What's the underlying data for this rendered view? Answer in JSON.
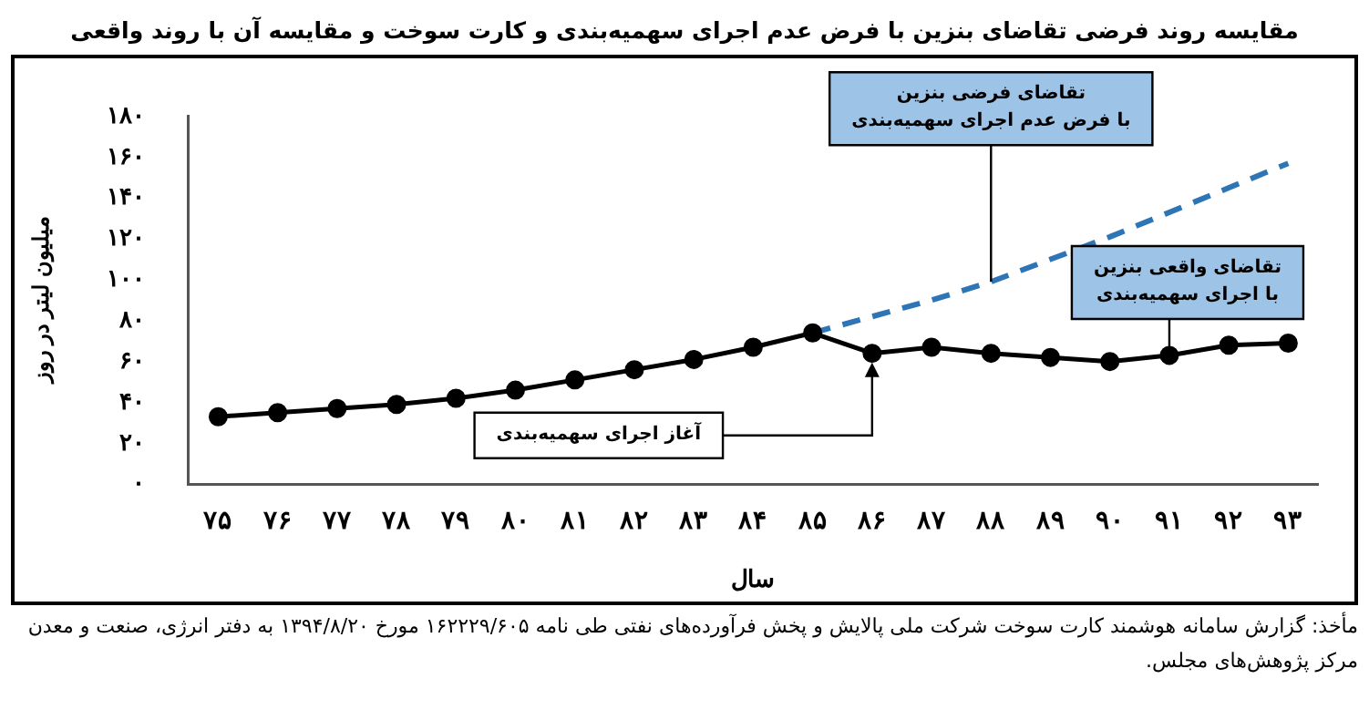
{
  "chart_data": {
    "type": "line",
    "title": "مقایسه روند فرضی تقاضای بنزین با فرض عدم اجرای سهمیه‌بندی و کارت سوخت و مقایسه آن با روند واقعی",
    "xlabel": "سال",
    "ylabel": "میلیون لیتر در روز",
    "categories": [
      "۷۵",
      "۷۶",
      "۷۷",
      "۷۸",
      "۷۹",
      "۸۰",
      "۸۱",
      "۸۲",
      "۸۳",
      "۸۴",
      "۸۵",
      "۸۶",
      "۸۷",
      "۸۸",
      "۸۹",
      "۹۰",
      "۹۱",
      "۹۲",
      "۹۳"
    ],
    "series": [
      {
        "color": "#000000",
        "marker": "circle",
        "line_style": "solid",
        "values": [
          33,
          35,
          37,
          39,
          42,
          46,
          51,
          56,
          61,
          67,
          74,
          64,
          67,
          64,
          62,
          60,
          63,
          68,
          69
        ]
      },
      {
        "color": "#2e75b6",
        "marker": "none",
        "line_style": "dashed",
        "values": [
          null,
          null,
          null,
          null,
          null,
          null,
          null,
          null,
          null,
          null,
          74,
          82,
          90,
          99,
          110,
          121,
          133,
          145,
          157
        ]
      }
    ],
    "ylim": [
      0,
      180
    ],
    "yticks": [
      {
        "value": 0,
        "label": "۰"
      },
      {
        "value": 20,
        "label": "۲۰"
      },
      {
        "value": 40,
        "label": "۴۰"
      },
      {
        "value": 60,
        "label": "۶۰"
      },
      {
        "value": 80,
        "label": "۸۰"
      },
      {
        "value": 100,
        "label": "۱۰۰"
      },
      {
        "value": 120,
        "label": "۱۲۰"
      },
      {
        "value": 140,
        "label": "۱۴۰"
      },
      {
        "value": 160,
        "label": "۱۶۰"
      },
      {
        "value": 180,
        "label": "۱۸۰"
      }
    ],
    "grid": false,
    "legend": false,
    "annotations": [
      {
        "text": "تقاضای فرضی بنزین\nبا فرض عدم اجرای سهمیه‌بندی",
        "x": "۸۸",
        "y": 99
      },
      {
        "text": "تقاضای واقعی بنزین\nبا اجرای سهمیه‌بندی",
        "x": "۹۱",
        "y": 63
      },
      {
        "text": "آغاز اجرای سهمیه‌بندی",
        "x": "۸۶",
        "y": 64
      },
      "مأخذ: گزارش سامانه هوشمند کارت سوخت شرکت ملی پالایش و پخش فرآورده‌های نفتی طی نامه ۱۶۲۲۲۹/۶۰۵ مورخ ۱۳۹۴/۸/۲۰ به دفتر انرژی، صنعت و معدن مرکز پژوهش‌های مجلس."
    ]
  }
}
